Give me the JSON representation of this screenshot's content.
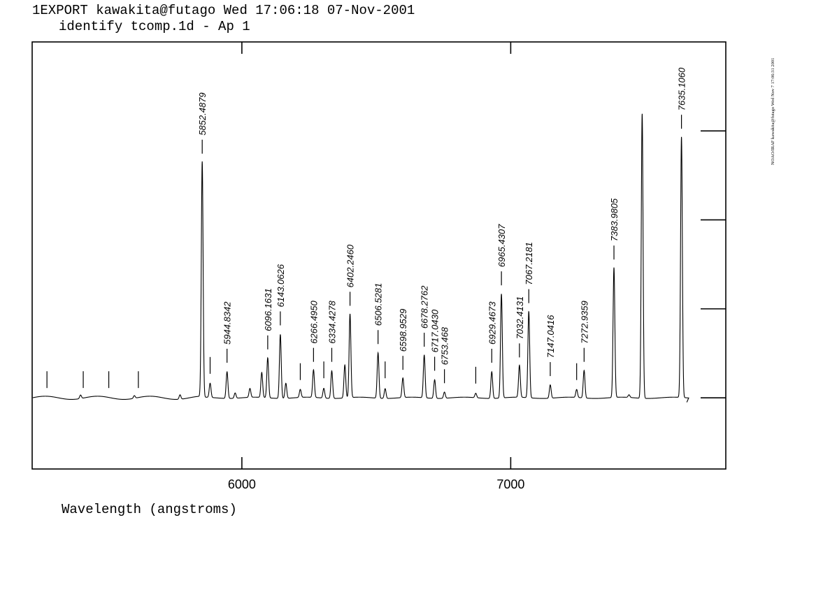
{
  "header": {
    "line1": "1EXPORT kawakita@futago Wed 17:06:18 07-Nov-2001",
    "line2": "identify tcomp.1d - Ap 1"
  },
  "side_note": "NOAO/IRAF kawakita@futago Wed Nov  7 17:06:31 2001",
  "chart_data": {
    "type": "line",
    "title": "identify tcomp.1d - Ap 1",
    "xlabel": "Wavelength (angstroms)",
    "ylabel": "",
    "xlim": [
      5220,
      7800
    ],
    "ylim": [
      -0.8,
      4
    ],
    "x_ticks": [
      6000,
      7000
    ],
    "x_tick_labels": [
      "6000",
      "7000"
    ],
    "y_ticks": [
      0,
      1,
      2,
      3
    ],
    "grid": false,
    "baseline": 0,
    "peaks": [
      {
        "x": 5400,
        "h": 0.04
      },
      {
        "x": 5600,
        "h": 0.03
      },
      {
        "x": 5770,
        "h": 0.05
      },
      {
        "x": 5852.4879,
        "h": 2.65
      },
      {
        "x": 5881.9,
        "h": 0.16
      },
      {
        "x": 5944.8342,
        "h": 0.3
      },
      {
        "x": 5975,
        "h": 0.06
      },
      {
        "x": 6030,
        "h": 0.1
      },
      {
        "x": 6074,
        "h": 0.28
      },
      {
        "x": 6096.1631,
        "h": 0.45
      },
      {
        "x": 6143.0626,
        "h": 0.72
      },
      {
        "x": 6163.6,
        "h": 0.17
      },
      {
        "x": 6217.3,
        "h": 0.09
      },
      {
        "x": 6266.495,
        "h": 0.31
      },
      {
        "x": 6304.8,
        "h": 0.11
      },
      {
        "x": 6334.4278,
        "h": 0.31
      },
      {
        "x": 6382.99,
        "h": 0.37
      },
      {
        "x": 6402.246,
        "h": 0.94
      },
      {
        "x": 6506.5281,
        "h": 0.51
      },
      {
        "x": 6532.9,
        "h": 0.11
      },
      {
        "x": 6598.9529,
        "h": 0.22
      },
      {
        "x": 6678.2762,
        "h": 0.48
      },
      {
        "x": 6717.043,
        "h": 0.21
      },
      {
        "x": 6753.468,
        "h": 0.07
      },
      {
        "x": 6870,
        "h": 0.05
      },
      {
        "x": 6929.4673,
        "h": 0.3
      },
      {
        "x": 6965.4307,
        "h": 1.17
      },
      {
        "x": 7032.4131,
        "h": 0.36
      },
      {
        "x": 7067.2181,
        "h": 0.97
      },
      {
        "x": 7147.0416,
        "h": 0.15
      },
      {
        "x": 7245.2,
        "h": 0.09
      },
      {
        "x": 7272.9359,
        "h": 0.31
      },
      {
        "x": 7383.9805,
        "h": 1.46
      },
      {
        "x": 7440,
        "h": 0.03
      },
      {
        "x": 7488.9,
        "h": 3.2
      },
      {
        "x": 7635.106,
        "h": 2.93
      }
    ],
    "identified_lines": [
      {
        "x": 5852.4879,
        "label": "5852.4879"
      },
      {
        "x": 5944.8342,
        "label": "5944.8342"
      },
      {
        "x": 6096.1631,
        "label": "6096.1631"
      },
      {
        "x": 6143.0626,
        "label": "6143.0626"
      },
      {
        "x": 6266.495,
        "label": "6266.4950"
      },
      {
        "x": 6334.4278,
        "label": "6334.4278"
      },
      {
        "x": 6402.246,
        "label": "6402.2460"
      },
      {
        "x": 6506.5281,
        "label": "6506.5281"
      },
      {
        "x": 6598.9529,
        "label": "6598.9529"
      },
      {
        "x": 6678.2762,
        "label": "6678.2762"
      },
      {
        "x": 6717.043,
        "label": "6717.0430"
      },
      {
        "x": 6753.468,
        "label": "6753.468"
      },
      {
        "x": 6929.4673,
        "label": "6929.4673"
      },
      {
        "x": 6965.4307,
        "label": "6965.4307"
      },
      {
        "x": 7032.4131,
        "label": "7032.4131"
      },
      {
        "x": 7067.2181,
        "label": "7067.2181"
      },
      {
        "x": 7147.0416,
        "label": "7147.0416"
      },
      {
        "x": 7272.9359,
        "label": "7272.9359"
      },
      {
        "x": 7383.9805,
        "label": "7383.9805"
      },
      {
        "x": 7635.106,
        "label": "7635.1060"
      }
    ],
    "unlabeled_marks": [
      5275,
      5410,
      5505,
      5615,
      5881.9,
      6217.3,
      6304.8,
      6532.9,
      6870,
      7245.2
    ]
  }
}
